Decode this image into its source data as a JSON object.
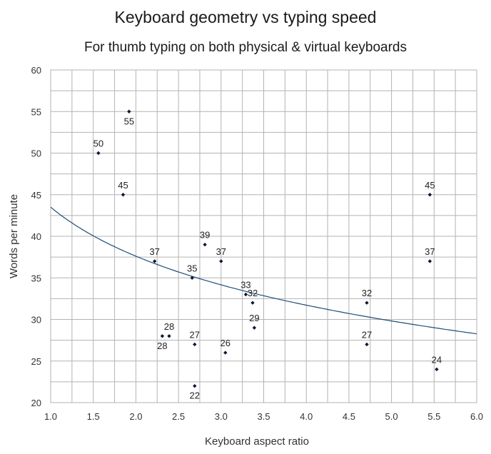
{
  "chart_data": {
    "type": "scatter",
    "title": "Keyboard geometry vs typing speed",
    "subtitle": "For thumb typing on both physical & virtual keyboards",
    "xlabel": "Keyboard aspect ratio",
    "ylabel": "Words per minute",
    "xlim": [
      1.0,
      6.0
    ],
    "ylim": [
      20,
      60
    ],
    "x_ticks": [
      "1.0",
      "1.5",
      "2.0",
      "2.5",
      "3.0",
      "3.5",
      "4.0",
      "4.5",
      "5.0",
      "5.5",
      "6.0"
    ],
    "y_ticks": [
      "20",
      "25",
      "30",
      "35",
      "40",
      "45",
      "50",
      "55",
      "60"
    ],
    "grid": true,
    "legend": "none",
    "colors": {
      "points": "#0a1a33",
      "trendline": "#1f4e79",
      "grid": "#b3b3b3"
    },
    "points": [
      {
        "x": 1.92,
        "y": 55,
        "label": "55",
        "label_side": "below"
      },
      {
        "x": 1.56,
        "y": 50,
        "label": "50",
        "label_side": "above"
      },
      {
        "x": 1.85,
        "y": 45,
        "label": "45",
        "label_side": "above"
      },
      {
        "x": 2.22,
        "y": 37,
        "label": "37",
        "label_side": "above"
      },
      {
        "x": 2.81,
        "y": 39,
        "label": "39",
        "label_side": "above"
      },
      {
        "x": 3.0,
        "y": 37,
        "label": "37",
        "label_side": "above"
      },
      {
        "x": 2.66,
        "y": 35,
        "label": "35",
        "label_side": "above"
      },
      {
        "x": 3.29,
        "y": 33,
        "label": "33",
        "label_side": "above"
      },
      {
        "x": 3.37,
        "y": 32,
        "label": "32",
        "label_side": "above"
      },
      {
        "x": 3.39,
        "y": 29,
        "label": "29",
        "label_side": "above"
      },
      {
        "x": 2.31,
        "y": 28,
        "label": "28",
        "label_side": "below"
      },
      {
        "x": 2.39,
        "y": 28,
        "label": "28",
        "label_side": "above"
      },
      {
        "x": 2.69,
        "y": 27,
        "label": "27",
        "label_side": "above"
      },
      {
        "x": 3.05,
        "y": 26,
        "label": "26",
        "label_side": "above"
      },
      {
        "x": 2.69,
        "y": 22,
        "label": "22",
        "label_side": "below"
      },
      {
        "x": 4.71,
        "y": 32,
        "label": "32",
        "label_side": "above"
      },
      {
        "x": 4.71,
        "y": 27,
        "label": "27",
        "label_side": "above"
      },
      {
        "x": 5.45,
        "y": 45,
        "label": "45",
        "label_side": "above"
      },
      {
        "x": 5.45,
        "y": 37,
        "label": "37",
        "label_side": "above"
      },
      {
        "x": 5.53,
        "y": 24,
        "label": "24",
        "label_side": "above"
      }
    ],
    "trendline": {
      "type": "logarithmic",
      "a": 43.5,
      "b": -8.5
    }
  }
}
